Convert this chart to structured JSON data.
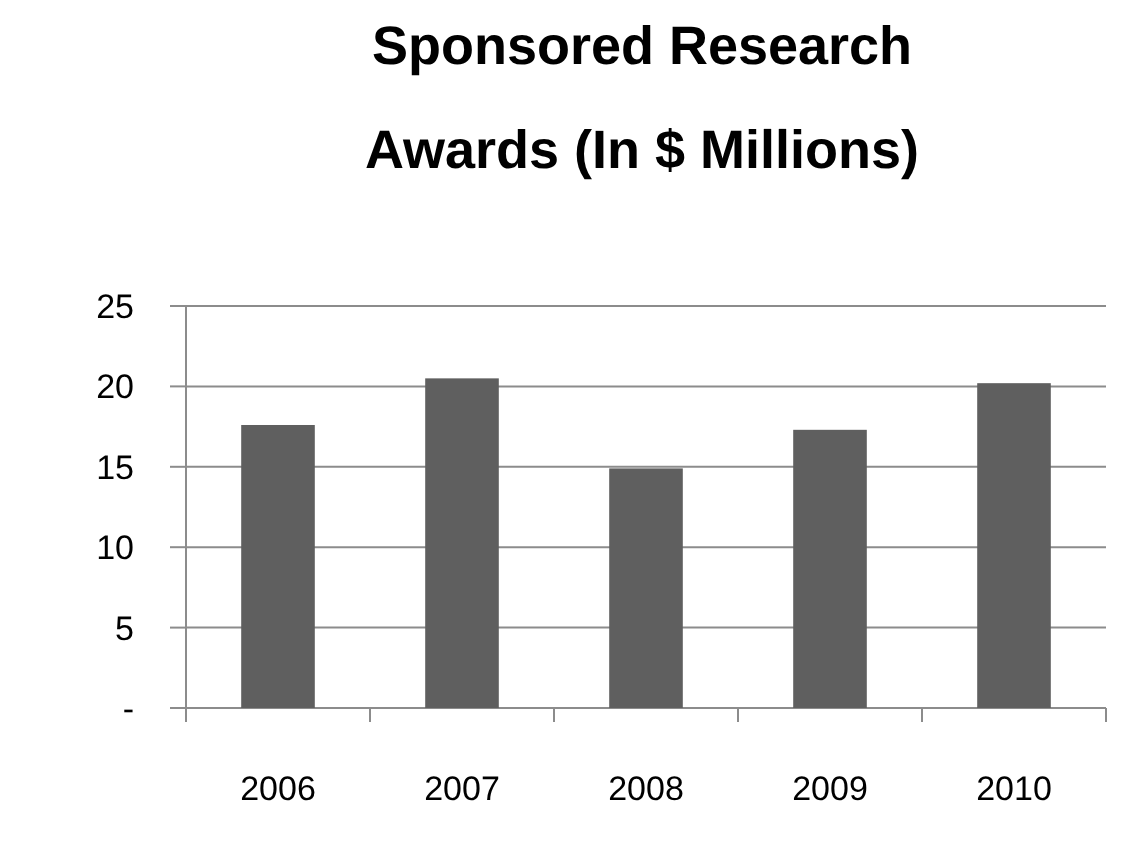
{
  "chart_data": {
    "type": "bar",
    "title": "Sponsored Research Awards (In $ Millions)",
    "categories": [
      "2006",
      "2007",
      "2008",
      "2009",
      "2010"
    ],
    "values": [
      17.6,
      20.5,
      14.9,
      17.3,
      20.2
    ],
    "color": "#5f5f5f",
    "ylim": [
      0,
      25
    ],
    "yticks": [
      {
        "value": 0,
        "label": "-"
      },
      5,
      10,
      15,
      20,
      25
    ],
    "grid": "y"
  }
}
